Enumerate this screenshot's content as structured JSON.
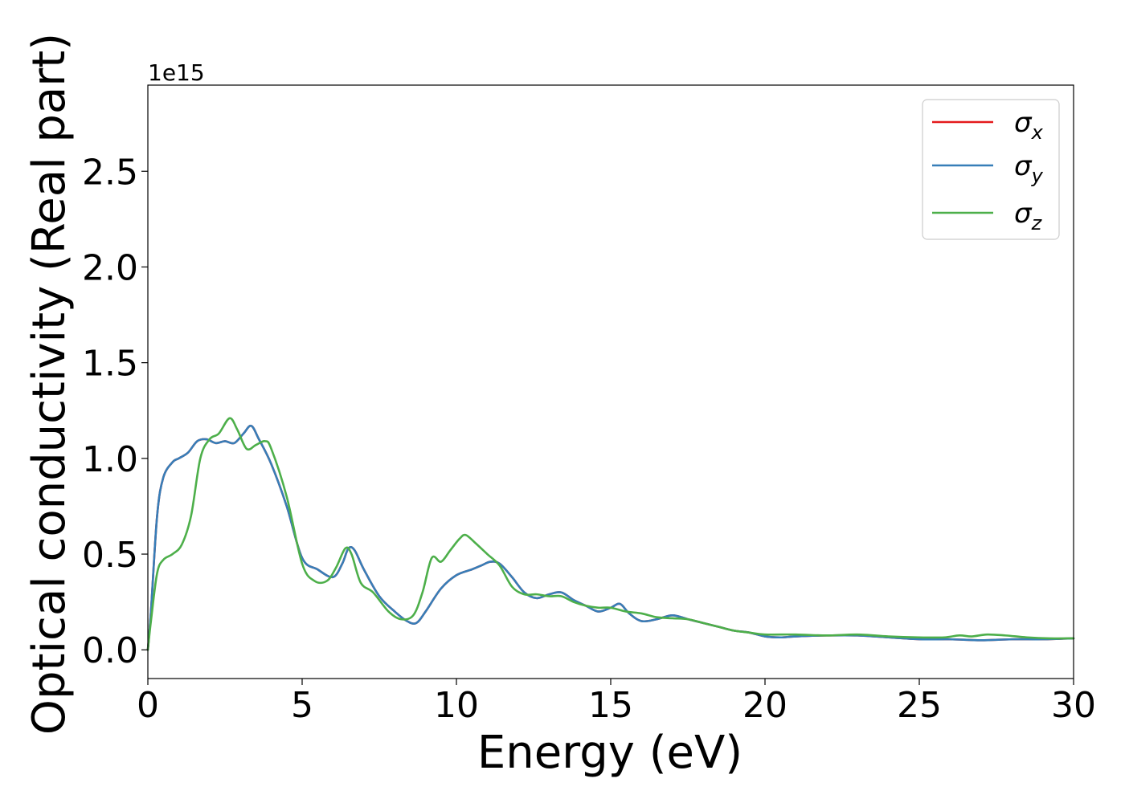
{
  "chart_data": {
    "type": "line",
    "title": "",
    "xlabel": "Energy (eV)",
    "ylabel": "Optical conductivity (Real part)",
    "y_offset_label": "1e15",
    "xlim": [
      0,
      30
    ],
    "ylim": [
      -0.15,
      2.95
    ],
    "x_ticks": [
      0,
      5,
      10,
      15,
      20,
      25,
      30
    ],
    "x_tick_labels": [
      "0",
      "5",
      "10",
      "15",
      "20",
      "25",
      "30"
    ],
    "y_ticks": [
      0,
      0.5,
      1.0,
      1.5,
      2.0,
      2.5
    ],
    "y_tick_labels": [
      "0.0",
      "0.5",
      "1.0",
      "1.5",
      "2.0",
      "2.5"
    ],
    "grid": false,
    "legend_position": "top-right",
    "series": [
      {
        "name": "x",
        "legend_symbol": "σ",
        "color": "#e41a1c",
        "x": [
          0,
          0.1,
          0.3,
          0.5,
          0.8,
          1.0,
          1.3,
          1.6,
          1.9,
          2.2,
          2.5,
          2.8,
          3.1,
          3.35,
          3.6,
          4.0,
          4.5,
          5.0,
          5.5,
          6.0,
          6.3,
          6.5,
          6.7,
          7.0,
          7.5,
          8.0,
          8.4,
          8.7,
          9.0,
          9.5,
          10.0,
          10.5,
          10.8,
          11.1,
          11.4,
          11.8,
          12.2,
          12.6,
          13.0,
          13.4,
          13.8,
          14.2,
          14.6,
          15.0,
          15.3,
          15.6,
          16.0,
          16.5,
          17.0,
          17.5,
          18.0,
          18.5,
          19.0,
          19.5,
          20.0,
          20.5,
          21.0,
          22.0,
          23.0,
          24.0,
          25.0,
          26.0,
          27.0,
          28.0,
          29.0,
          30.0
        ],
        "values": [
          0.0,
          0.2,
          0.7,
          0.9,
          0.98,
          1.0,
          1.03,
          1.09,
          1.1,
          1.08,
          1.09,
          1.08,
          1.13,
          1.17,
          1.1,
          0.97,
          0.75,
          0.48,
          0.42,
          0.38,
          0.45,
          0.53,
          0.52,
          0.42,
          0.28,
          0.2,
          0.15,
          0.14,
          0.2,
          0.32,
          0.39,
          0.42,
          0.44,
          0.46,
          0.45,
          0.38,
          0.3,
          0.27,
          0.29,
          0.3,
          0.26,
          0.23,
          0.2,
          0.22,
          0.24,
          0.19,
          0.15,
          0.16,
          0.18,
          0.16,
          0.14,
          0.12,
          0.1,
          0.09,
          0.07,
          0.065,
          0.07,
          0.075,
          0.075,
          0.065,
          0.055,
          0.055,
          0.05,
          0.055,
          0.055,
          0.06
        ]
      },
      {
        "name": "y",
        "legend_symbol": "σ",
        "color": "#377eb8",
        "x": [
          0,
          0.1,
          0.3,
          0.5,
          0.8,
          1.0,
          1.3,
          1.6,
          1.9,
          2.2,
          2.5,
          2.8,
          3.1,
          3.35,
          3.6,
          4.0,
          4.5,
          5.0,
          5.5,
          6.0,
          6.3,
          6.5,
          6.7,
          7.0,
          7.5,
          8.0,
          8.4,
          8.7,
          9.0,
          9.5,
          10.0,
          10.5,
          10.8,
          11.1,
          11.4,
          11.8,
          12.2,
          12.6,
          13.0,
          13.4,
          13.8,
          14.2,
          14.6,
          15.0,
          15.3,
          15.6,
          16.0,
          16.5,
          17.0,
          17.5,
          18.0,
          18.5,
          19.0,
          19.5,
          20.0,
          20.5,
          21.0,
          22.0,
          23.0,
          24.0,
          25.0,
          26.0,
          27.0,
          28.0,
          29.0,
          30.0
        ],
        "values": [
          0.0,
          0.2,
          0.7,
          0.9,
          0.98,
          1.0,
          1.03,
          1.09,
          1.1,
          1.08,
          1.09,
          1.08,
          1.13,
          1.17,
          1.1,
          0.97,
          0.75,
          0.48,
          0.42,
          0.38,
          0.45,
          0.53,
          0.52,
          0.42,
          0.28,
          0.2,
          0.15,
          0.14,
          0.2,
          0.32,
          0.39,
          0.42,
          0.44,
          0.46,
          0.45,
          0.38,
          0.3,
          0.27,
          0.29,
          0.3,
          0.26,
          0.23,
          0.2,
          0.22,
          0.24,
          0.19,
          0.15,
          0.16,
          0.18,
          0.16,
          0.14,
          0.12,
          0.1,
          0.09,
          0.07,
          0.065,
          0.07,
          0.075,
          0.075,
          0.065,
          0.055,
          0.055,
          0.05,
          0.055,
          0.055,
          0.06
        ]
      },
      {
        "name": "z",
        "legend_symbol": "σ",
        "color": "#4daf4a",
        "x": [
          0,
          0.1,
          0.3,
          0.5,
          0.8,
          1.1,
          1.4,
          1.7,
          2.0,
          2.3,
          2.65,
          2.9,
          3.2,
          3.5,
          3.8,
          4.0,
          4.5,
          5.0,
          5.4,
          5.8,
          6.1,
          6.4,
          6.6,
          6.9,
          7.3,
          7.8,
          8.2,
          8.6,
          8.9,
          9.2,
          9.5,
          9.8,
          10.1,
          10.3,
          10.6,
          11.0,
          11.4,
          11.8,
          12.2,
          12.6,
          13.0,
          13.4,
          13.8,
          14.2,
          14.6,
          15.0,
          15.5,
          16.0,
          16.5,
          17.0,
          17.5,
          18.0,
          18.5,
          19.0,
          19.5,
          20.0,
          21.0,
          22.0,
          23.0,
          24.0,
          25.0,
          25.8,
          26.3,
          26.7,
          27.2,
          27.8,
          28.5,
          29.2,
          30.0
        ],
        "values": [
          0.0,
          0.15,
          0.4,
          0.47,
          0.5,
          0.55,
          0.7,
          1.0,
          1.1,
          1.13,
          1.21,
          1.15,
          1.05,
          1.07,
          1.09,
          1.05,
          0.8,
          0.45,
          0.36,
          0.36,
          0.43,
          0.53,
          0.5,
          0.35,
          0.3,
          0.2,
          0.16,
          0.18,
          0.3,
          0.48,
          0.46,
          0.52,
          0.58,
          0.6,
          0.56,
          0.5,
          0.44,
          0.33,
          0.29,
          0.29,
          0.28,
          0.28,
          0.25,
          0.23,
          0.22,
          0.22,
          0.2,
          0.19,
          0.17,
          0.165,
          0.16,
          0.14,
          0.12,
          0.1,
          0.09,
          0.08,
          0.08,
          0.075,
          0.08,
          0.07,
          0.065,
          0.065,
          0.075,
          0.07,
          0.08,
          0.075,
          0.065,
          0.06,
          0.06
        ]
      }
    ]
  }
}
